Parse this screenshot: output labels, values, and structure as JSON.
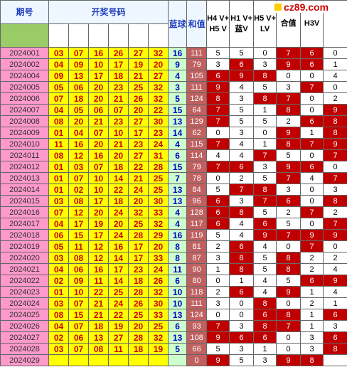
{
  "header": {
    "issue": "期号",
    "reds": "开奖号码",
    "blue": "蓝球",
    "sum": "和值",
    "stats": [
      "H4 V+ H5 V",
      "H1 V+ 蓝V",
      "H5 V+ LV",
      "合值",
      "H3V",
      ""
    ]
  },
  "logo": "cz89.com",
  "palette": {
    "w": "#ffffff",
    "r": "#c00000"
  },
  "rows": [
    {
      "issue": "2024001",
      "reds": [
        "03",
        "07",
        "16",
        "26",
        "27",
        "32"
      ],
      "blue": 16,
      "sum": 111,
      "stats": [
        5,
        5,
        0,
        7,
        6,
        0
      ],
      "colors": "wwwrrw"
    },
    {
      "issue": "2024002",
      "reds": [
        "04",
        "09",
        "10",
        "17",
        "19",
        "20"
      ],
      "blue": 9,
      "sum": 79,
      "stats": [
        3,
        6,
        3,
        9,
        6,
        1
      ],
      "colors": "wrwrrw"
    },
    {
      "issue": "2024004",
      "reds": [
        "09",
        "13",
        "17",
        "18",
        "21",
        "27"
      ],
      "blue": 4,
      "sum": 105,
      "stats": [
        6,
        9,
        8,
        0,
        0,
        4
      ],
      "colors": "rrrwww"
    },
    {
      "issue": "2024005",
      "reds": [
        "05",
        "06",
        "20",
        "23",
        "25",
        "32"
      ],
      "blue": 3,
      "sum": 111,
      "stats": [
        9,
        4,
        5,
        3,
        7,
        0
      ],
      "colors": "rwwwrw"
    },
    {
      "issue": "2024006",
      "reds": [
        "07",
        "18",
        "20",
        "21",
        "26",
        "32"
      ],
      "blue": 5,
      "sum": 124,
      "stats": [
        8,
        3,
        8,
        7,
        0,
        2
      ],
      "colors": "rwrrww"
    },
    {
      "issue": "2024007",
      "reds": [
        "04",
        "05",
        "06",
        "07",
        "20",
        "22"
      ],
      "blue": 15,
      "sum": 64,
      "stats": [
        7,
        5,
        1,
        8,
        0,
        9
      ],
      "colors": "rwwrwr"
    },
    {
      "issue": "2024008",
      "reds": [
        "08",
        "20",
        "21",
        "23",
        "27",
        "30"
      ],
      "blue": 13,
      "sum": 129,
      "stats": [
        7,
        5,
        5,
        2,
        6,
        8
      ],
      "colors": "rwwwrr"
    },
    {
      "issue": "2024009",
      "reds": [
        "01",
        "04",
        "07",
        "10",
        "17",
        "23"
      ],
      "blue": 14,
      "sum": 62,
      "stats": [
        0,
        3,
        0,
        9,
        1,
        8
      ],
      "colors": "wwwrwr"
    },
    {
      "issue": "2024010",
      "reds": [
        "11",
        "16",
        "20",
        "21",
        "23",
        "24"
      ],
      "blue": 4,
      "sum": 115,
      "stats": [
        7,
        4,
        1,
        8,
        7,
        9
      ],
      "colors": "rwwrrr"
    },
    {
      "issue": "2024011",
      "reds": [
        "08",
        "12",
        "16",
        "20",
        "27",
        "31"
      ],
      "blue": 6,
      "sum": 114,
      "stats": [
        4,
        4,
        7,
        5,
        0,
        7
      ],
      "colors": "wwrwwr"
    },
    {
      "issue": "2024012",
      "reds": [
        "01",
        "03",
        "07",
        "18",
        "22",
        "28"
      ],
      "blue": 15,
      "sum": 79,
      "stats": [
        7,
        6,
        3,
        9,
        6,
        0
      ],
      "colors": "rrwrrw"
    },
    {
      "issue": "2024013",
      "reds": [
        "01",
        "07",
        "10",
        "14",
        "21",
        "25"
      ],
      "blue": 7,
      "sum": 78,
      "stats": [
        0,
        2,
        5,
        7,
        4,
        7
      ],
      "colors": "wwwrwr"
    },
    {
      "issue": "2024014",
      "reds": [
        "01",
        "02",
        "10",
        "22",
        "24",
        "25"
      ],
      "blue": 13,
      "sum": 84,
      "stats": [
        5,
        7,
        8,
        3,
        0,
        3
      ],
      "colors": "wrrwww"
    },
    {
      "issue": "2024015",
      "reds": [
        "03",
        "08",
        "17",
        "18",
        "20",
        "30"
      ],
      "blue": 13,
      "sum": 96,
      "stats": [
        6,
        3,
        7,
        6,
        0,
        8
      ],
      "colors": "rwrrwr"
    },
    {
      "issue": "2024016",
      "reds": [
        "07",
        "12",
        "20",
        "24",
        "32",
        "33"
      ],
      "blue": 4,
      "sum": 128,
      "stats": [
        6,
        8,
        5,
        2,
        7,
        2
      ],
      "colors": "rrwwrw"
    },
    {
      "issue": "2024017",
      "reds": [
        "04",
        "17",
        "19",
        "20",
        "25",
        "32"
      ],
      "blue": 4,
      "sum": 117,
      "stats": [
        6,
        4,
        6,
        5,
        0,
        7
      ],
      "colors": "rwrwwr"
    },
    {
      "issue": "2024018",
      "reds": [
        "06",
        "15",
        "17",
        "24",
        "28",
        "29"
      ],
      "blue": 16,
      "sum": 119,
      "stats": [
        5,
        4,
        9,
        7,
        9,
        9
      ],
      "colors": "wwrrrr"
    },
    {
      "issue": "2024019",
      "reds": [
        "05",
        "11",
        "12",
        "16",
        "17",
        "20"
      ],
      "blue": 8,
      "sum": 81,
      "stats": [
        2,
        6,
        4,
        0,
        7,
        0
      ],
      "colors": "wrwwrw"
    },
    {
      "issue": "2024020",
      "reds": [
        "03",
        "08",
        "12",
        "14",
        "17",
        "33"
      ],
      "blue": 8,
      "sum": 87,
      "stats": [
        3,
        8,
        5,
        8,
        2,
        2
      ],
      "colors": "wrwrww"
    },
    {
      "issue": "2024021",
      "reds": [
        "04",
        "06",
        "16",
        "17",
        "23",
        "24"
      ],
      "blue": 11,
      "sum": 90,
      "stats": [
        1,
        8,
        5,
        8,
        2,
        4
      ],
      "colors": "wrwrww"
    },
    {
      "issue": "2024022",
      "reds": [
        "02",
        "09",
        "11",
        "14",
        "18",
        "26"
      ],
      "blue": 6,
      "sum": 80,
      "stats": [
        0,
        1,
        4,
        5,
        6,
        9
      ],
      "colors": "wwwwrr"
    },
    {
      "issue": "2024023",
      "reds": [
        "01",
        "10",
        "22",
        "25",
        "28",
        "32"
      ],
      "blue": 10,
      "sum": 118,
      "stats": [
        2,
        6,
        4,
        9,
        1,
        4
      ],
      "colors": "wrwrww"
    },
    {
      "issue": "2024024",
      "reds": [
        "03",
        "07",
        "21",
        "24",
        "26",
        "30"
      ],
      "blue": 10,
      "sum": 111,
      "stats": [
        3,
        0,
        8,
        0,
        2,
        1
      ],
      "colors": "wwrwww"
    },
    {
      "issue": "2024025",
      "reds": [
        "08",
        "15",
        "21",
        "22",
        "25",
        "33"
      ],
      "blue": 13,
      "sum": 124,
      "stats": [
        0,
        0,
        6,
        8,
        1,
        6
      ],
      "colors": "wwrrwr"
    },
    {
      "issue": "2024026",
      "reds": [
        "04",
        "07",
        "18",
        "19",
        "20",
        "25"
      ],
      "blue": 6,
      "sum": 93,
      "stats": [
        7,
        3,
        8,
        7,
        1,
        3
      ],
      "colors": "rwrrww"
    },
    {
      "issue": "2024027",
      "reds": [
        "02",
        "06",
        "13",
        "27",
        "28",
        "32"
      ],
      "blue": 13,
      "sum": 108,
      "stats": [
        9,
        6,
        6,
        0,
        3,
        6
      ],
      "colors": "rrrwwr"
    },
    {
      "issue": "2024028",
      "reds": [
        "03",
        "07",
        "08",
        "11",
        "18",
        "19"
      ],
      "blue": 5,
      "sum": 66,
      "stats": [
        5,
        3,
        1,
        0,
        3,
        8
      ],
      "colors": "wwwwwr"
    },
    {
      "issue": "2024029",
      "reds": [],
      "blue": null,
      "sum": 0,
      "stats": [
        9,
        5,
        3,
        9,
        8
      ],
      "colors": "rwwrr"
    }
  ]
}
